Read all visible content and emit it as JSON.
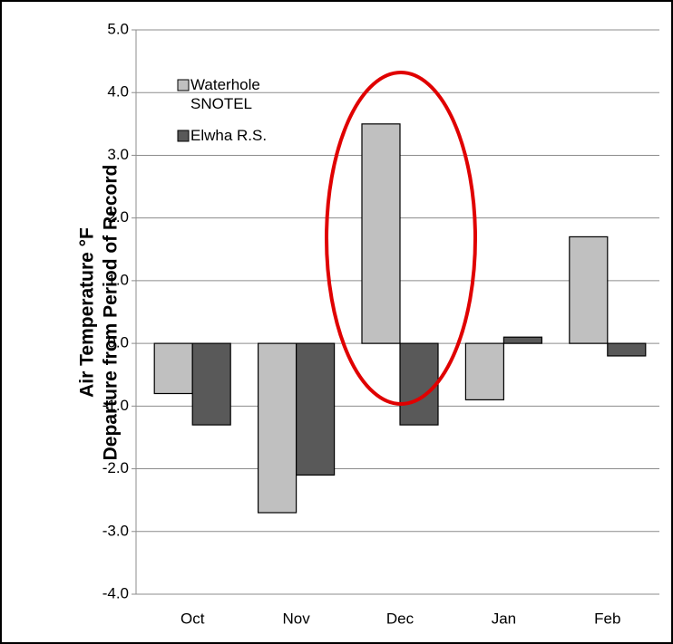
{
  "chart_data": {
    "type": "bar",
    "y_label_lines": [
      "Air Temperature °F",
      "Departure from Period of Record"
    ],
    "categories": [
      "Oct",
      "Nov",
      "Dec",
      "Jan",
      "Feb"
    ],
    "series": [
      {
        "name": "Waterhole SNOTEL",
        "color": "#c0c0c0",
        "values": [
          -0.8,
          -2.7,
          3.5,
          -0.9,
          1.7
        ]
      },
      {
        "name": "Elwha R.S.",
        "color": "#595959",
        "values": [
          -1.3,
          -2.1,
          -1.3,
          0.1,
          -0.2
        ]
      }
    ],
    "ylim": [
      -4,
      5
    ],
    "yticks": [
      {
        "value": -4,
        "label": "-4.0"
      },
      {
        "value": -3,
        "label": "-3.0"
      },
      {
        "value": -2,
        "label": "-2.0"
      },
      {
        "value": -1,
        "label": "-1.0"
      },
      {
        "value": 0,
        "label": "0.0"
      },
      {
        "value": 1,
        "label": "1.0"
      },
      {
        "value": 2,
        "label": "2.0"
      },
      {
        "value": 3,
        "label": "3.0"
      },
      {
        "value": 4,
        "label": "4.0"
      },
      {
        "value": 5,
        "label": "5.0"
      }
    ],
    "grid": true
  }
}
